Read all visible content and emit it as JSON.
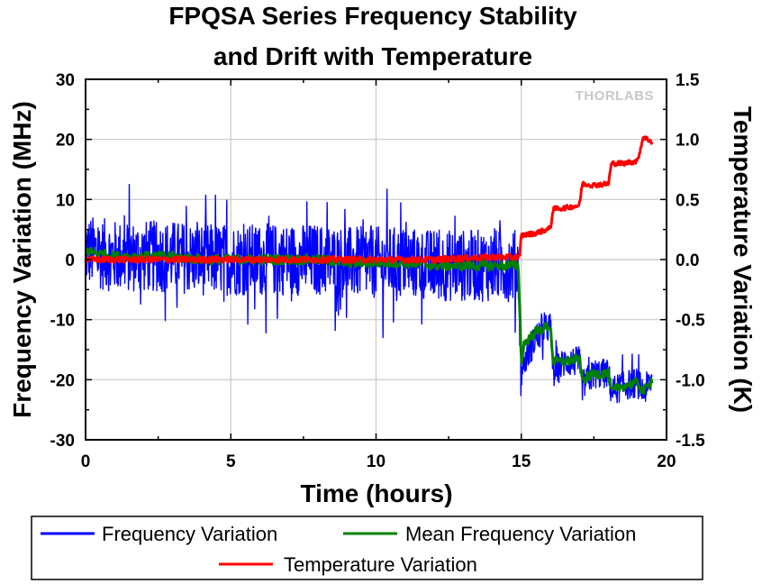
{
  "chart_data": {
    "type": "line",
    "title_line1": "FPQSA Series Frequency Stability",
    "title_line2": "and Drift with Temperature",
    "xlabel": "Time (hours)",
    "ylabel_left": "Frequency Variation (MHz)",
    "ylabel_right": "Temperature Variation (K)",
    "xlim": [
      0,
      20
    ],
    "ylim_left": [
      -30,
      30
    ],
    "ylim_right": [
      -1.5,
      1.5
    ],
    "x_ticks": [
      "0",
      "5",
      "10",
      "15",
      "20"
    ],
    "y_left_ticks": [
      "30",
      "20",
      "10",
      "0",
      "-10",
      "-20",
      "-30"
    ],
    "y_right_ticks": [
      "1.5",
      "1.0",
      "0.5",
      "0.0",
      "-0.5",
      "-1.0",
      "-1.5"
    ],
    "grid": true,
    "legend_placement": "bottom",
    "brand_label": "THORLABS",
    "series": [
      {
        "name": "Frequency Variation",
        "color": "#0000ff",
        "axis": "left",
        "x": [
          0,
          1,
          2,
          3,
          4,
          5,
          6,
          7,
          8,
          9,
          10,
          11,
          12,
          13,
          14,
          14.9,
          15.0,
          15.1,
          15.5,
          16.0,
          16.1,
          16.5,
          17.0,
          17.1,
          17.5,
          18.0,
          18.1,
          18.5,
          19.0,
          19.2,
          19.5
        ],
        "values": [
          1.5,
          0.5,
          0.5,
          0.5,
          0,
          0,
          0,
          0,
          0,
          -0.5,
          -0.5,
          -0.5,
          -1,
          -1,
          -1,
          -1,
          -19,
          -17,
          -13,
          -11,
          -19,
          -17,
          -17,
          -21,
          -19,
          -19,
          -22,
          -21,
          -20.5,
          -22,
          -20
        ],
        "spread": 6
      },
      {
        "name": "Mean Frequency Variation",
        "color": "#008000",
        "axis": "left",
        "x": [
          0,
          1,
          2,
          3,
          4,
          5,
          6,
          7,
          8,
          9,
          10,
          11,
          12,
          13,
          14,
          14.9,
          15.0,
          15.1,
          15.5,
          16.0,
          16.1,
          16.5,
          17.0,
          17.1,
          17.5,
          18.0,
          18.1,
          18.5,
          19.0,
          19.2,
          19.5
        ],
        "values": [
          1.5,
          0.5,
          0.5,
          0.5,
          0,
          0,
          0,
          0,
          0,
          -0.5,
          -0.5,
          -0.5,
          -1,
          -1,
          -1,
          -1,
          -17,
          -14,
          -12,
          -11,
          -17,
          -17,
          -16.5,
          -20,
          -19,
          -19,
          -22,
          -21,
          -20.5,
          -22,
          -20
        ]
      },
      {
        "name": "Temperature Variation",
        "color": "#ff0000",
        "axis": "right",
        "x": [
          0,
          2,
          4,
          6,
          8,
          10,
          12,
          14,
          14.95,
          15.0,
          15.5,
          16.0,
          16.1,
          16.5,
          17.0,
          17.1,
          17.5,
          18.0,
          18.1,
          18.5,
          19.0,
          19.2,
          19.5
        ],
        "values": [
          0.0,
          0.0,
          0.0,
          0.0,
          0.0,
          0.0,
          0.0,
          0.02,
          0.02,
          0.2,
          0.22,
          0.26,
          0.42,
          0.43,
          0.45,
          0.63,
          0.62,
          0.63,
          0.8,
          0.8,
          0.82,
          1.02,
          0.98
        ]
      }
    ]
  }
}
